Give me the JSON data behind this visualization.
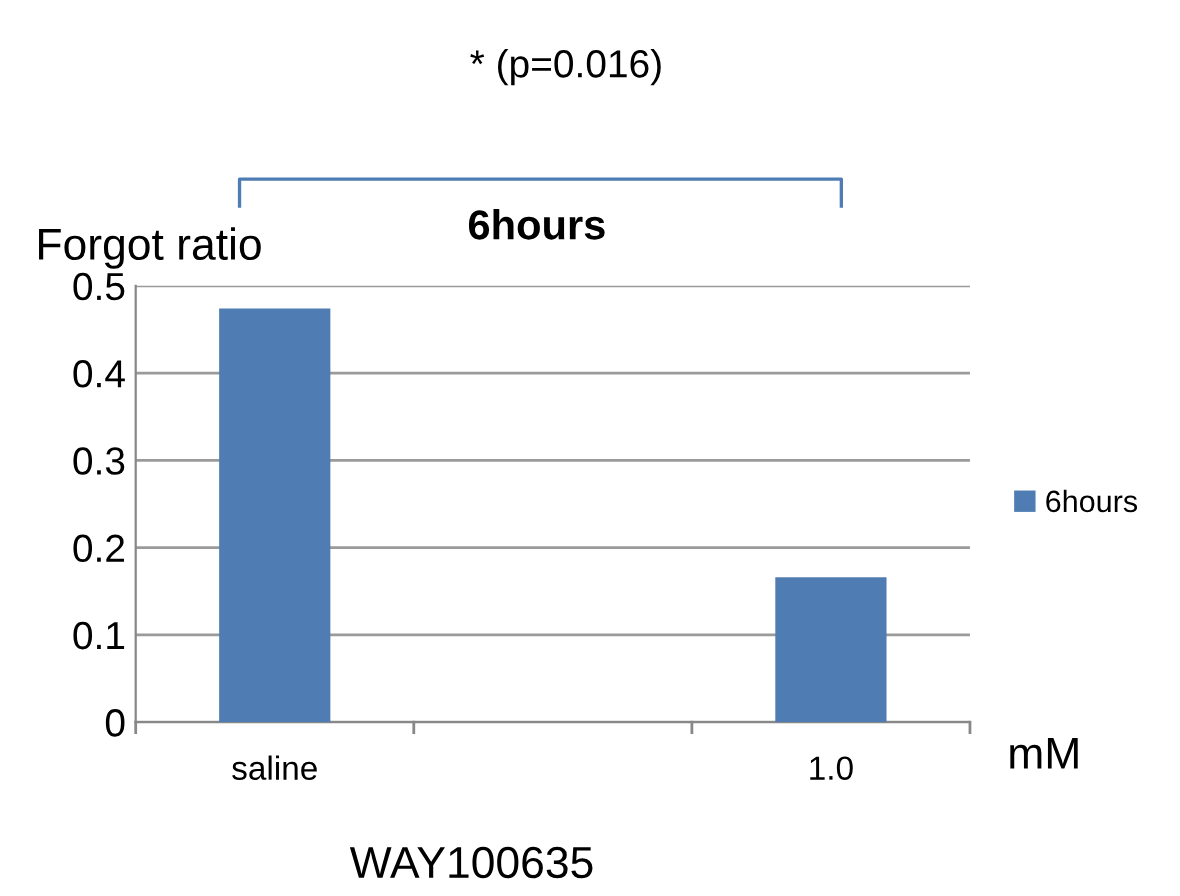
{
  "chart_data": {
    "type": "bar",
    "ylabel": "Forgot ratio",
    "xlabel": "WAY100635",
    "categories": [
      "saline",
      null,
      "1.0"
    ],
    "series": [
      {
        "name": "6hours",
        "color": "#4f7db3",
        "values": [
          0.474,
          null,
          0.166
        ]
      }
    ],
    "ylim": [
      0,
      0.5
    ],
    "yticks": [
      0,
      0.1,
      0.2,
      0.3,
      0.4,
      0.5
    ],
    "grid": "y",
    "legend": "right",
    "annotations": [
      "* (p=0.016)",
      "6hours",
      "mM"
    ]
  }
}
